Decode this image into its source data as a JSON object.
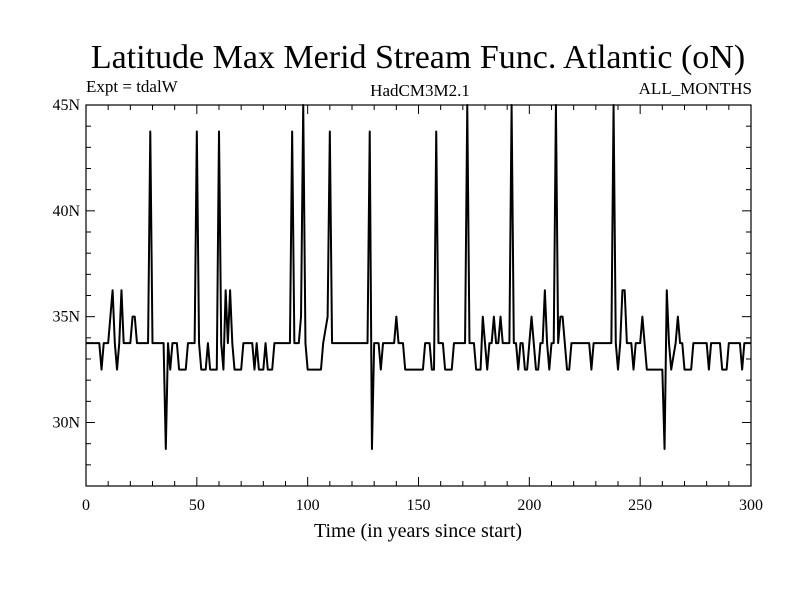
{
  "chart_data": {
    "type": "line",
    "title": "Latitude Max Merid Stream Func. Atlantic (oN)",
    "subtitle_left": "Expt = tdalW",
    "subtitle_center": "HadCM3M2.1",
    "subtitle_right": "ALL_MONTHS",
    "xlabel": "Time (in years since start)",
    "ylabel": "",
    "xlim": [
      0,
      300
    ],
    "ylim": [
      27,
      45
    ],
    "x_ticks": [
      {
        "value": 0,
        "label": "0"
      },
      {
        "value": 50,
        "label": "50"
      },
      {
        "value": 100,
        "label": "100"
      },
      {
        "value": 150,
        "label": "150"
      },
      {
        "value": 200,
        "label": "200"
      },
      {
        "value": 250,
        "label": "250"
      },
      {
        "value": 300,
        "label": "300"
      }
    ],
    "y_ticks": [
      {
        "value": 30,
        "label": "30N"
      },
      {
        "value": 35,
        "label": "35N"
      },
      {
        "value": 40,
        "label": "40N"
      },
      {
        "value": 45,
        "label": "45N"
      }
    ],
    "grid": false,
    "series": [
      {
        "color": "#000000",
        "points": [
          [
            0,
            33.75
          ],
          [
            6,
            33.75
          ],
          [
            7,
            32.5
          ],
          [
            8,
            33.75
          ],
          [
            10,
            33.75
          ],
          [
            11,
            35
          ],
          [
            12,
            36.25
          ],
          [
            13,
            33.75
          ],
          [
            14,
            32.5
          ],
          [
            15,
            33.75
          ],
          [
            16,
            36.25
          ],
          [
            17,
            33.75
          ],
          [
            20,
            33.75
          ],
          [
            21,
            35
          ],
          [
            22,
            35
          ],
          [
            23,
            33.75
          ],
          [
            28,
            33.75
          ],
          [
            29,
            43.75
          ],
          [
            30,
            33.75
          ],
          [
            35,
            33.75
          ],
          [
            36,
            28.75
          ],
          [
            37,
            33.75
          ],
          [
            38,
            32.5
          ],
          [
            39,
            33.75
          ],
          [
            41,
            33.75
          ],
          [
            42,
            32.5
          ],
          [
            45,
            32.5
          ],
          [
            46,
            33.75
          ],
          [
            49,
            33.75
          ],
          [
            50,
            43.75
          ],
          [
            51,
            33.75
          ],
          [
            52,
            32.5
          ],
          [
            54,
            32.5
          ],
          [
            55,
            33.75
          ],
          [
            56,
            32.5
          ],
          [
            59,
            32.5
          ],
          [
            60,
            43.75
          ],
          [
            61,
            33.75
          ],
          [
            62,
            32.5
          ],
          [
            63,
            36.25
          ],
          [
            64,
            33.75
          ],
          [
            65,
            36.25
          ],
          [
            66,
            33.75
          ],
          [
            67,
            32.5
          ],
          [
            70,
            32.5
          ],
          [
            71,
            33.75
          ],
          [
            75,
            33.75
          ],
          [
            76,
            32.5
          ],
          [
            77,
            33.75
          ],
          [
            78,
            32.5
          ],
          [
            80,
            32.5
          ],
          [
            81,
            33.75
          ],
          [
            82,
            32.5
          ],
          [
            84,
            32.5
          ],
          [
            85,
            33.75
          ],
          [
            92,
            33.75
          ],
          [
            93,
            43.75
          ],
          [
            94,
            33.75
          ],
          [
            96,
            33.75
          ],
          [
            97,
            35
          ],
          [
            98,
            45
          ],
          [
            99,
            33.75
          ],
          [
            100,
            32.5
          ],
          [
            106,
            32.5
          ],
          [
            107,
            33.75
          ],
          [
            109,
            35
          ],
          [
            110,
            43.75
          ],
          [
            111,
            33.75
          ],
          [
            127,
            33.75
          ],
          [
            128,
            43.75
          ],
          [
            129,
            28.75
          ],
          [
            130,
            33.75
          ],
          [
            132,
            33.75
          ],
          [
            133,
            32.5
          ],
          [
            134,
            33.75
          ],
          [
            139,
            33.75
          ],
          [
            140,
            35
          ],
          [
            141,
            33.75
          ],
          [
            143,
            33.75
          ],
          [
            144,
            32.5
          ],
          [
            152,
            32.5
          ],
          [
            153,
            33.75
          ],
          [
            155,
            33.75
          ],
          [
            156,
            32.5
          ],
          [
            157,
            32.5
          ],
          [
            158,
            43.75
          ],
          [
            159,
            33.75
          ],
          [
            161,
            33.75
          ],
          [
            162,
            32.5
          ],
          [
            165,
            32.5
          ],
          [
            166,
            33.75
          ],
          [
            171,
            33.75
          ],
          [
            172,
            45
          ],
          [
            173,
            33.75
          ],
          [
            175,
            33.75
          ],
          [
            176,
            32.5
          ],
          [
            178,
            32.5
          ],
          [
            179,
            35
          ],
          [
            180,
            33.75
          ],
          [
            181,
            32.5
          ],
          [
            182,
            33.75
          ],
          [
            183,
            33.75
          ],
          [
            184,
            35
          ],
          [
            185,
            33.75
          ],
          [
            186,
            33.75
          ],
          [
            187,
            35
          ],
          [
            188,
            33.75
          ],
          [
            191,
            33.75
          ],
          [
            192,
            45
          ],
          [
            193,
            33.75
          ],
          [
            194,
            33.75
          ],
          [
            195,
            32.5
          ],
          [
            196,
            33.75
          ],
          [
            197,
            33.75
          ],
          [
            198,
            32.5
          ],
          [
            199,
            32.5
          ],
          [
            200,
            33.75
          ],
          [
            201,
            35
          ],
          [
            202,
            33.75
          ],
          [
            203,
            32.5
          ],
          [
            204,
            32.5
          ],
          [
            205,
            33.75
          ],
          [
            206,
            33.75
          ],
          [
            207,
            36.25
          ],
          [
            208,
            33.75
          ],
          [
            209,
            32.5
          ],
          [
            210,
            33.75
          ],
          [
            211,
            33.75
          ],
          [
            212,
            45
          ],
          [
            213,
            33.75
          ],
          [
            214,
            35
          ],
          [
            215,
            35
          ],
          [
            216,
            33.75
          ],
          [
            217,
            32.5
          ],
          [
            218,
            32.5
          ],
          [
            219,
            33.75
          ],
          [
            227,
            33.75
          ],
          [
            228,
            32.5
          ],
          [
            229,
            33.75
          ],
          [
            237,
            33.75
          ],
          [
            238,
            45
          ],
          [
            239,
            33.75
          ],
          [
            240,
            32.5
          ],
          [
            241,
            33.75
          ],
          [
            242,
            36.25
          ],
          [
            243,
            36.25
          ],
          [
            244,
            33.75
          ],
          [
            246,
            33.75
          ],
          [
            247,
            32.5
          ],
          [
            248,
            33.75
          ],
          [
            250,
            33.75
          ],
          [
            251,
            35
          ],
          [
            252,
            33.75
          ],
          [
            253,
            32.5
          ],
          [
            260,
            32.5
          ],
          [
            261,
            28.75
          ],
          [
            262,
            36.25
          ],
          [
            263,
            33.75
          ],
          [
            264,
            32.5
          ],
          [
            266,
            33.75
          ],
          [
            267,
            35
          ],
          [
            268,
            33.75
          ],
          [
            269,
            33.75
          ],
          [
            270,
            32.5
          ],
          [
            273,
            32.5
          ],
          [
            274,
            33.75
          ],
          [
            280,
            33.75
          ],
          [
            281,
            32.5
          ],
          [
            282,
            33.75
          ],
          [
            286,
            33.75
          ],
          [
            287,
            32.5
          ],
          [
            289,
            32.5
          ],
          [
            290,
            33.75
          ],
          [
            295,
            33.75
          ],
          [
            296,
            32.5
          ],
          [
            297,
            33.75
          ],
          [
            300,
            33.75
          ]
        ]
      }
    ]
  }
}
